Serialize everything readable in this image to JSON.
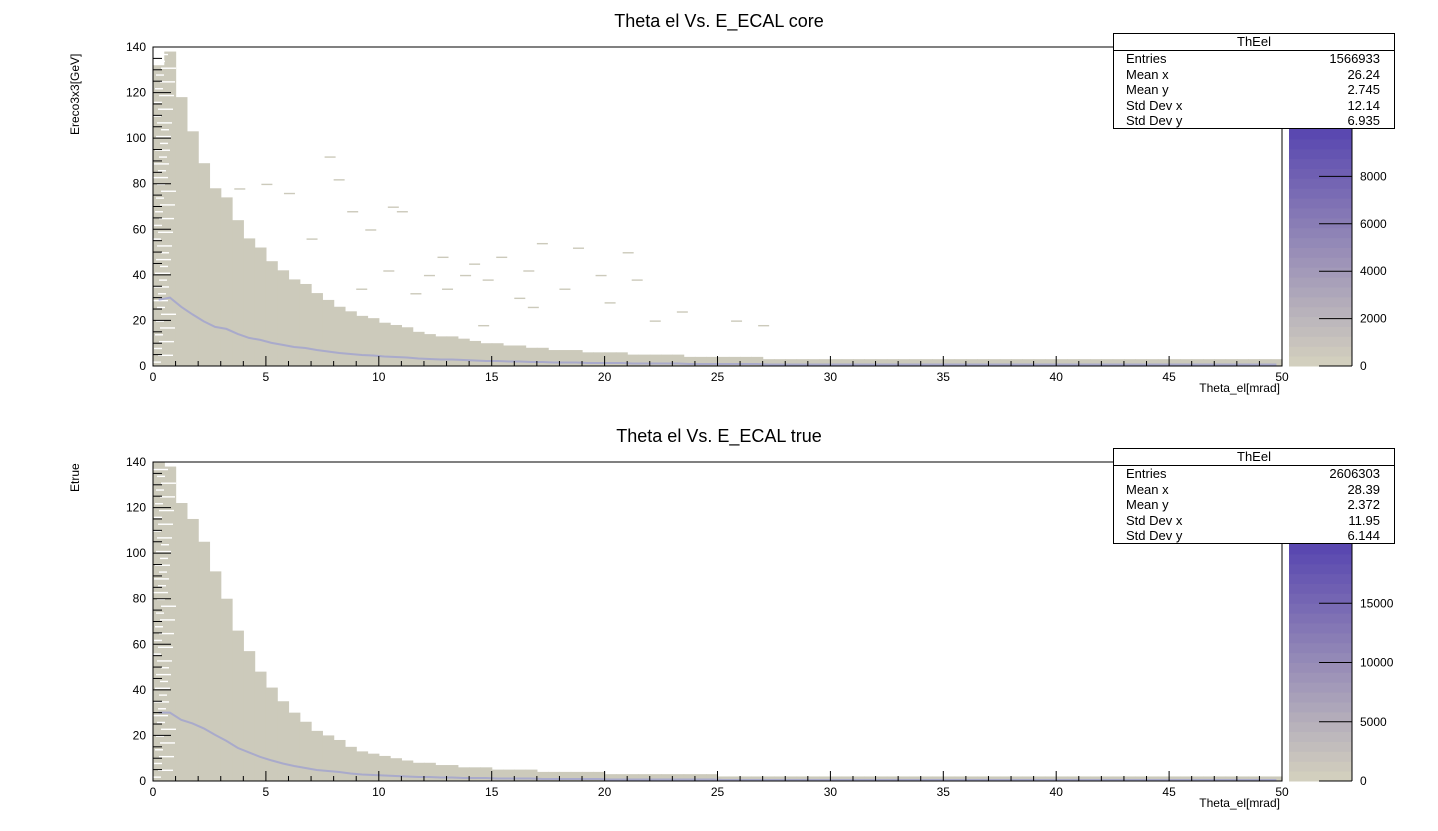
{
  "chart_data": [
    {
      "type": "heatmap",
      "title": "Theta el Vs. E_ECAL core",
      "xlabel": "Theta_el[mrad]",
      "ylabel": "Ereco3x3[GeV]",
      "xlim": [
        0,
        50
      ],
      "ylim": [
        0,
        140
      ],
      "xticks": [
        0,
        5,
        10,
        15,
        20,
        25,
        30,
        35,
        40,
        45,
        50
      ],
      "yticks": [
        0,
        20,
        40,
        60,
        80,
        100,
        120,
        140
      ],
      "colorbar": {
        "ticks": [
          0,
          2000,
          4000,
          6000,
          8000
        ],
        "max": 10000
      },
      "profile_top": [
        132,
        138,
        118,
        103,
        89,
        78,
        74,
        64,
        56,
        52,
        46,
        42,
        38,
        36,
        32,
        29,
        26,
        24,
        22,
        21,
        19,
        18,
        17,
        15,
        14,
        13,
        13,
        12,
        11,
        10,
        10,
        9,
        9,
        8,
        8,
        7,
        7,
        7,
        6,
        6,
        6,
        6,
        5,
        5,
        5,
        5,
        5,
        4,
        4,
        4,
        4,
        4,
        4,
        4,
        3,
        3,
        3,
        3,
        3,
        3,
        3,
        3,
        3,
        3,
        3,
        3,
        3,
        3,
        3,
        3,
        3,
        3,
        3,
        3,
        3,
        3,
        3,
        3,
        3,
        3,
        3,
        3,
        3,
        3,
        3,
        3,
        3,
        3,
        3,
        3,
        3,
        3,
        3,
        3,
        3,
        3,
        3,
        3,
        3,
        3
      ],
      "stats": {
        "name": "ThEel",
        "entries": "1566933",
        "mean_x": "26.24",
        "mean_y": "2.745",
        "std_dev_x": "12.14",
        "std_dev_y": "6.935"
      }
    },
    {
      "type": "heatmap",
      "title": "Theta el Vs. E_ECAL true",
      "xlabel": "Theta_el[mrad]",
      "ylabel": "Etrue",
      "xlim": [
        0,
        50
      ],
      "ylim": [
        0,
        140
      ],
      "xticks": [
        0,
        5,
        10,
        15,
        20,
        25,
        30,
        35,
        40,
        45,
        50
      ],
      "yticks": [
        0,
        20,
        40,
        60,
        80,
        100,
        120,
        140
      ],
      "colorbar": {
        "ticks": [
          0,
          5000,
          10000,
          15000
        ],
        "max": 20000
      },
      "profile_top": [
        140,
        138,
        122,
        115,
        105,
        92,
        80,
        66,
        57,
        48,
        41,
        35,
        30,
        26,
        22,
        20,
        18,
        15,
        13,
        12,
        11,
        10,
        9,
        8,
        8,
        7,
        7,
        6,
        6,
        6,
        5,
        5,
        5,
        5,
        4,
        4,
        4,
        4,
        4,
        4,
        3,
        3,
        3,
        3,
        3,
        3,
        3,
        3,
        3,
        3,
        2,
        2,
        2,
        2,
        2,
        2,
        2,
        2,
        2,
        2,
        2,
        2,
        2,
        2,
        2,
        2,
        2,
        2,
        2,
        2,
        2,
        2,
        2,
        2,
        2,
        2,
        2,
        2,
        2,
        2,
        2,
        2,
        2,
        2,
        2,
        2,
        2,
        2,
        2,
        2,
        2,
        2,
        2,
        2,
        2,
        2,
        2,
        2,
        2,
        2
      ],
      "stats": {
        "name": "ThEel",
        "entries": "2606303",
        "mean_x": "28.39",
        "mean_y": "2.372",
        "std_dev_x": "11.95",
        "std_dev_y": "6.144"
      }
    }
  ],
  "stats_labels": {
    "entries": "Entries",
    "mean_x": "Mean x",
    "mean_y": "Mean y",
    "std_dev_x": "Std Dev x",
    "std_dev_y": "Std Dev y"
  },
  "colors": {
    "fill": "#cccabb",
    "palette_low": "#d2cfbe",
    "palette_high": "#5a48b0",
    "profile_line": "#8c8fd8"
  }
}
